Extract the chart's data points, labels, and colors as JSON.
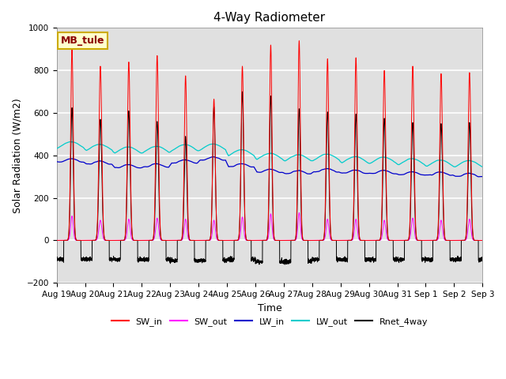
{
  "title": "4-Way Radiometer",
  "xlabel": "Time",
  "ylabel": "Solar Radiation (W/m2)",
  "ylim": [
    -200,
    1000
  ],
  "n_days": 15,
  "station_label": "MB_tule",
  "background_color": "#e0e0e0",
  "grid_color": "white",
  "tick_labels": [
    "Aug 19",
    "Aug 20",
    "Aug 21",
    "Aug 22",
    "Aug 23",
    "Aug 24",
    "Aug 25",
    "Aug 26",
    "Aug 27",
    "Aug 28",
    "Aug 29",
    "Aug 30",
    "Aug 31",
    "Sep 1",
    "Sep 2",
    "Sep 3"
  ],
  "colors": {
    "SW_in": "#ff0000",
    "SW_out": "#ff00ff",
    "LW_in": "#0000cc",
    "LW_out": "#00cccc",
    "Rnet_4way": "#000000"
  },
  "SW_in_peaks": [
    900,
    820,
    840,
    870,
    775,
    665,
    820,
    920,
    940,
    855,
    860,
    800,
    820,
    785,
    790
  ],
  "SW_out_peaks": [
    115,
    95,
    100,
    105,
    100,
    95,
    110,
    125,
    130,
    100,
    100,
    95,
    105,
    95,
    100
  ],
  "LW_in_base": [
    370,
    360,
    345,
    350,
    370,
    385,
    355,
    330,
    325,
    335,
    330,
    330,
    325,
    325,
    320
  ],
  "LW_out_base": [
    445,
    435,
    425,
    430,
    440,
    445,
    420,
    405,
    400,
    405,
    395,
    395,
    390,
    385,
    385
  ],
  "Rnet_peaks": [
    625,
    570,
    610,
    560,
    490,
    630,
    700,
    680,
    620,
    605,
    595,
    575,
    555,
    550,
    555
  ],
  "Rnet_night": [
    -90,
    -90,
    -90,
    -90,
    -95,
    -95,
    -90,
    -100,
    -100,
    -90,
    -90,
    -90,
    -90,
    -90,
    -90
  ],
  "solar_width": [
    0.18,
    0.2,
    0.19,
    0.19,
    0.18,
    0.18,
    0.18,
    0.17,
    0.17,
    0.18,
    0.18,
    0.19,
    0.19,
    0.19,
    0.19
  ]
}
